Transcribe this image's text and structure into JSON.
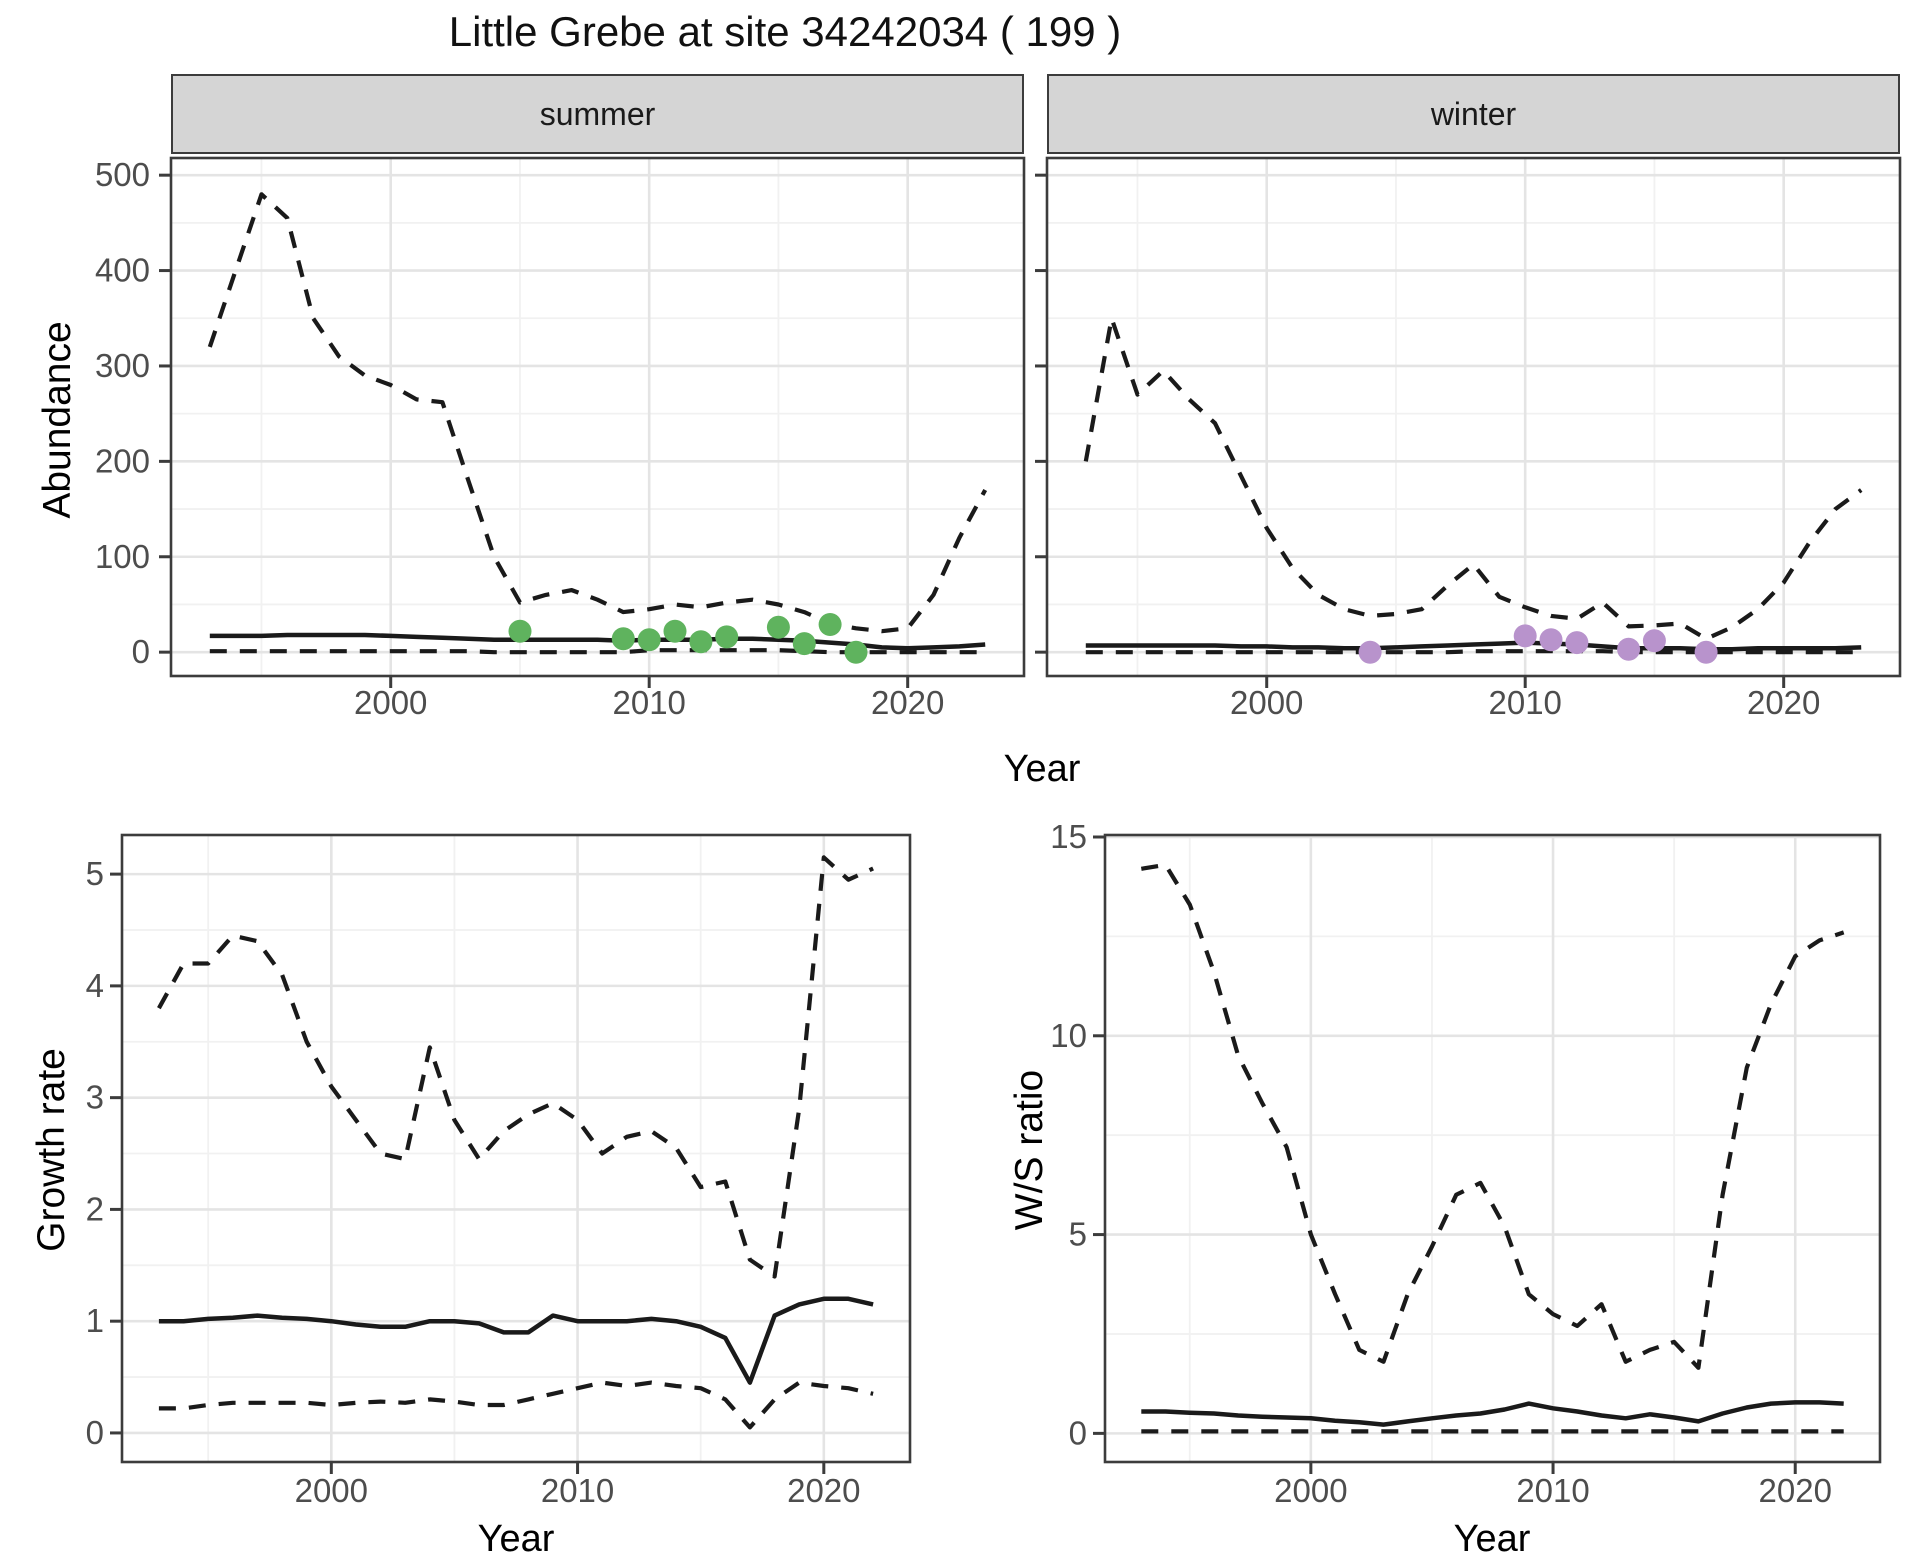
{
  "title": "Little Grebe at site 34242034 ( 199 )",
  "colors": {
    "line": "#1a1a1a",
    "observed_summer": "#5fb35e",
    "observed_winter": "#b893cc",
    "strip_fill": "#d5d5d5",
    "panel_border": "#3c3c3c",
    "grid_major": "#e4e4e4",
    "grid_minor": "#f1f1f1",
    "tick_label": "#4d4d4d"
  },
  "chart_data": [
    {
      "id": "abundance-summer",
      "type": "line",
      "strip": "summer",
      "ylabel": "Abundance",
      "xlabel": "Year",
      "x": [
        1993,
        1994,
        1995,
        1996,
        1997,
        1998,
        1999,
        2000,
        2001,
        2002,
        2003,
        2004,
        2005,
        2006,
        2007,
        2008,
        2009,
        2010,
        2011,
        2012,
        2013,
        2014,
        2015,
        2016,
        2017,
        2018,
        2019,
        2020,
        2021,
        2022,
        2023
      ],
      "series": [
        {
          "name": "upper_ci",
          "style": "dashed",
          "values": [
            320,
            400,
            480,
            455,
            350,
            310,
            290,
            280,
            265,
            262,
            180,
            100,
            52,
            60,
            65,
            55,
            42,
            45,
            50,
            47,
            52,
            55,
            50,
            42,
            30,
            25,
            22,
            25,
            60,
            120,
            170
          ]
        },
        {
          "name": "median",
          "style": "solid",
          "values": [
            17,
            17,
            17,
            18,
            18,
            18,
            18,
            17,
            16,
            15,
            14,
            13,
            13,
            13,
            13,
            13,
            12,
            13,
            13,
            13,
            14,
            14,
            13,
            12,
            10,
            8,
            5,
            4,
            5,
            6,
            8
          ]
        },
        {
          "name": "lower_ci",
          "style": "dashed",
          "values": [
            1,
            1,
            1,
            1,
            1,
            1,
            1,
            1,
            1,
            1,
            1,
            0,
            0,
            0,
            0,
            0,
            0,
            2,
            2,
            2,
            2,
            2,
            2,
            1,
            0,
            0,
            0,
            0,
            0,
            0,
            0
          ]
        }
      ],
      "points": {
        "name": "observed",
        "x": [
          2005,
          2009,
          2010,
          2011,
          2012,
          2013,
          2015,
          2016,
          2017,
          2018
        ],
        "y": [
          22,
          14,
          13,
          22,
          11,
          16,
          26,
          9,
          29,
          0
        ]
      },
      "xlim": [
        1991.5,
        2024.5
      ],
      "ylim": [
        -25,
        518
      ],
      "xticks": [
        2000,
        2010,
        2020
      ],
      "yticks": [
        0,
        100,
        200,
        300,
        400,
        500
      ],
      "xminor": [
        1995,
        2005,
        2015
      ],
      "yminor": [
        50,
        150,
        250,
        350,
        450
      ],
      "grid": true
    },
    {
      "id": "abundance-winter",
      "type": "line",
      "strip": "winter",
      "ylabel": "Abundance",
      "xlabel": "Year",
      "x": [
        1993,
        1994,
        1995,
        1996,
        1997,
        1998,
        1999,
        2000,
        2001,
        2002,
        2003,
        2004,
        2005,
        2006,
        2007,
        2008,
        2009,
        2010,
        2011,
        2012,
        2013,
        2014,
        2015,
        2016,
        2017,
        2018,
        2019,
        2020,
        2021,
        2022,
        2023
      ],
      "series": [
        {
          "name": "upper_ci",
          "style": "dashed",
          "values": [
            200,
            350,
            270,
            295,
            265,
            240,
            185,
            130,
            88,
            60,
            45,
            38,
            40,
            45,
            70,
            92,
            58,
            47,
            38,
            35,
            52,
            27,
            28,
            30,
            14,
            26,
            45,
            73,
            115,
            150,
            170
          ]
        },
        {
          "name": "median",
          "style": "solid",
          "values": [
            7,
            7,
            7,
            7,
            7,
            7,
            6,
            6,
            5,
            5,
            4,
            4,
            5,
            6,
            7,
            8,
            9,
            10,
            9,
            8,
            6,
            4,
            4,
            4,
            3,
            3,
            4,
            4,
            4,
            4,
            5
          ]
        },
        {
          "name": "lower_ci",
          "style": "dashed",
          "values": [
            0,
            0,
            0,
            0,
            0,
            0,
            0,
            0,
            0,
            0,
            0,
            0,
            0,
            0,
            0,
            1,
            1,
            1,
            1,
            1,
            1,
            0,
            0,
            0,
            0,
            0,
            0,
            0,
            0,
            0,
            0
          ]
        }
      ],
      "points": {
        "name": "observed",
        "x": [
          2004,
          2010,
          2011,
          2012,
          2014,
          2015,
          2017
        ],
        "y": [
          0,
          17,
          13,
          10,
          3,
          12,
          0
        ]
      },
      "xlim": [
        1991.5,
        2024.5
      ],
      "ylim": [
        -25,
        518
      ],
      "xticks": [
        2000,
        2010,
        2020
      ],
      "yticks": [
        0,
        100,
        200,
        300,
        400,
        500
      ],
      "xminor": [
        1995,
        2005,
        2015
      ],
      "yminor": [
        50,
        150,
        250,
        350,
        450
      ],
      "grid": true
    },
    {
      "id": "growth-rate",
      "type": "line",
      "strip": null,
      "ylabel": "Growth rate",
      "xlabel": "Year",
      "x": [
        1993,
        1994,
        1995,
        1996,
        1997,
        1998,
        1999,
        2000,
        2001,
        2002,
        2003,
        2004,
        2005,
        2006,
        2007,
        2008,
        2009,
        2010,
        2011,
        2012,
        2013,
        2014,
        2015,
        2016,
        2017,
        2018,
        2019,
        2020,
        2021,
        2022
      ],
      "series": [
        {
          "name": "upper_ci",
          "style": "dashed",
          "values": [
            3.8,
            4.2,
            4.2,
            4.45,
            4.4,
            4.1,
            3.5,
            3.1,
            2.8,
            2.5,
            2.45,
            3.45,
            2.8,
            2.45,
            2.7,
            2.85,
            2.95,
            2.8,
            2.5,
            2.65,
            2.7,
            2.55,
            2.2,
            2.25,
            1.55,
            1.4,
            2.9,
            5.15,
            4.95,
            5.05
          ]
        },
        {
          "name": "median",
          "style": "solid",
          "values": [
            1.0,
            1.0,
            1.02,
            1.03,
            1.05,
            1.03,
            1.02,
            1.0,
            0.97,
            0.95,
            0.95,
            1.0,
            1.0,
            0.98,
            0.9,
            0.9,
            1.05,
            1.0,
            1.0,
            1.0,
            1.02,
            1.0,
            0.95,
            0.85,
            0.45,
            1.05,
            1.15,
            1.2,
            1.2,
            1.15
          ]
        },
        {
          "name": "lower_ci",
          "style": "dashed",
          "values": [
            0.22,
            0.22,
            0.25,
            0.27,
            0.27,
            0.27,
            0.27,
            0.25,
            0.27,
            0.28,
            0.27,
            0.3,
            0.28,
            0.25,
            0.25,
            0.3,
            0.35,
            0.4,
            0.45,
            0.42,
            0.45,
            0.42,
            0.4,
            0.3,
            0.05,
            0.3,
            0.45,
            0.42,
            0.4,
            0.35
          ]
        }
      ],
      "points": null,
      "xlim": [
        1991.5,
        2023.5
      ],
      "ylim": [
        -0.26,
        5.35
      ],
      "xticks": [
        2000,
        2010,
        2020
      ],
      "yticks": [
        0,
        1,
        2,
        3,
        4,
        5
      ],
      "xminor": [
        1995,
        2005,
        2015
      ],
      "yminor": [
        0.5,
        1.5,
        2.5,
        3.5,
        4.5
      ],
      "grid": true
    },
    {
      "id": "ws-ratio",
      "type": "line",
      "strip": null,
      "ylabel": "W/S ratio",
      "xlabel": "Year",
      "x": [
        1993,
        1994,
        1995,
        1996,
        1997,
        1998,
        1999,
        2000,
        2001,
        2002,
        2003,
        2004,
        2005,
        2006,
        2007,
        2008,
        2009,
        2010,
        2011,
        2012,
        2013,
        2014,
        2015,
        2016,
        2017,
        2018,
        2019,
        2020,
        2021,
        2022
      ],
      "series": [
        {
          "name": "upper_ci",
          "style": "dashed",
          "values": [
            14.2,
            14.3,
            13.3,
            11.6,
            9.5,
            8.3,
            7.2,
            5.0,
            3.5,
            2.1,
            1.8,
            3.5,
            4.7,
            6.0,
            6.3,
            5.2,
            3.5,
            3.0,
            2.7,
            3.25,
            1.8,
            2.1,
            2.3,
            1.65,
            6.0,
            9.2,
            10.8,
            12.0,
            12.4,
            12.6
          ]
        },
        {
          "name": "median",
          "style": "solid",
          "values": [
            0.55,
            0.55,
            0.52,
            0.5,
            0.45,
            0.42,
            0.4,
            0.38,
            0.32,
            0.28,
            0.22,
            0.3,
            0.38,
            0.45,
            0.5,
            0.6,
            0.75,
            0.63,
            0.55,
            0.45,
            0.38,
            0.48,
            0.4,
            0.3,
            0.5,
            0.65,
            0.75,
            0.78,
            0.78,
            0.75
          ]
        },
        {
          "name": "lower_ci",
          "style": "dashed",
          "values": [
            0.05,
            0.05,
            0.05,
            0.05,
            0.05,
            0.05,
            0.05,
            0.05,
            0.05,
            0.05,
            0.05,
            0.05,
            0.05,
            0.05,
            0.05,
            0.05,
            0.05,
            0.05,
            0.05,
            0.05,
            0.05,
            0.05,
            0.05,
            0.05,
            0.05,
            0.05,
            0.05,
            0.05,
            0.05,
            0.05
          ]
        }
      ],
      "points": null,
      "xlim": [
        1991.5,
        2023.5
      ],
      "ylim": [
        -0.72,
        15.05
      ],
      "xticks": [
        2000,
        2010,
        2020
      ],
      "yticks": [
        0,
        5,
        10,
        15
      ],
      "xminor": [
        1995,
        2005,
        2015
      ],
      "yminor": [
        2.5,
        7.5,
        12.5
      ],
      "grid": true
    }
  ]
}
